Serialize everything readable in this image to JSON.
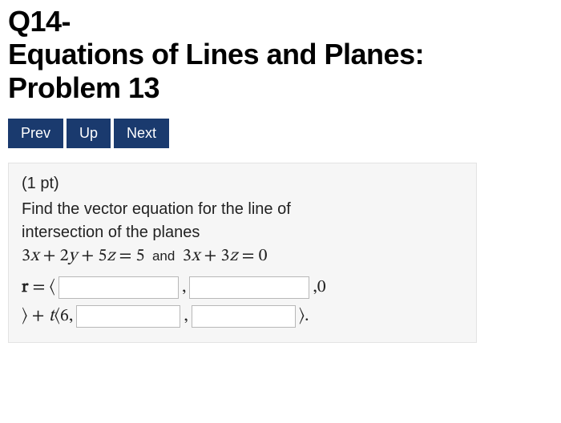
{
  "heading": {
    "line1": "Q14-",
    "line2": "Equations of Lines and Planes:",
    "line3": "Problem 13"
  },
  "nav": {
    "prev": "Prev",
    "up": "Up",
    "next": "Next",
    "button_bg": "#1a3a6e",
    "button_fg": "#ffffff"
  },
  "problem": {
    "points_label": "(1 pt)",
    "prompt_line1": "Find the vector equation for the line of",
    "prompt_line2": "intersection of the planes",
    "plane1": "3x + 2y + 5z = 5",
    "and_word": "and",
    "plane2": "3x + 3z = 0",
    "answer": {
      "r_prefix": "r = ⟨",
      "comma": ",",
      "third_component": ",0",
      "close_plus_t": "⟩ + t⟨6,",
      "close_final": "⟩.",
      "blank1": "",
      "blank2": "",
      "blank3": "",
      "blank4": ""
    }
  },
  "box_style": {
    "background": "#f6f6f6",
    "border": "#e3e3e3"
  }
}
